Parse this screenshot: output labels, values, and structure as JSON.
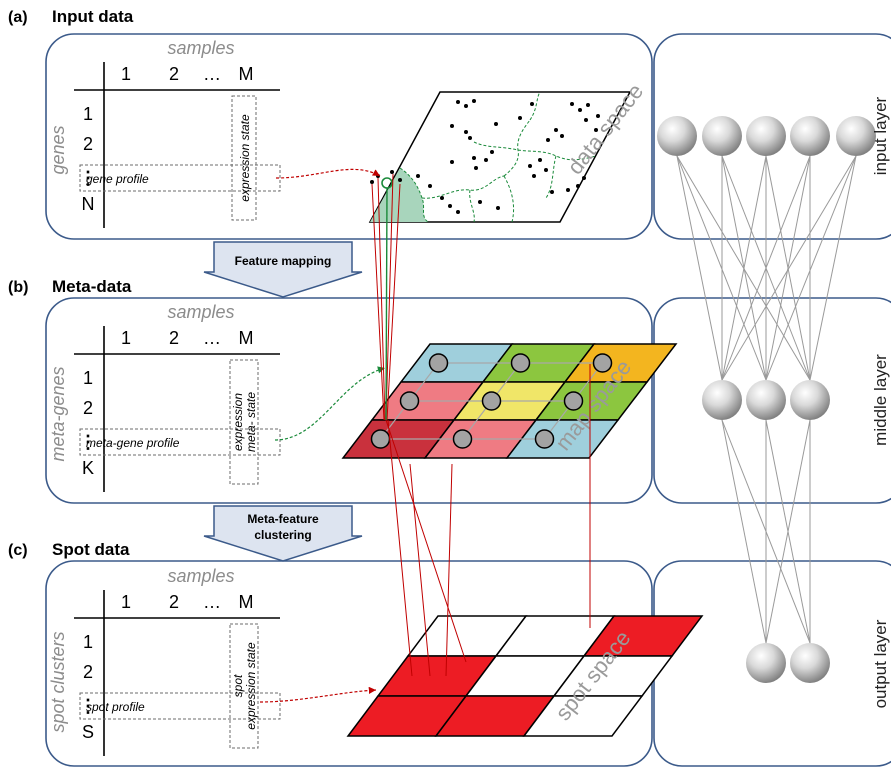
{
  "sections": [
    {
      "letter": "(a)",
      "title": "Input data"
    },
    {
      "letter": "(b)",
      "title": "Meta-data"
    },
    {
      "letter": "(c)",
      "title": "Spot data"
    }
  ],
  "tables": [
    {
      "samples_label": "samples",
      "row_axis_label": "genes",
      "profile_label": "gene profile",
      "state_label": [
        "expression state"
      ],
      "last_row": "N"
    },
    {
      "samples_label": "samples",
      "row_axis_label": "meta-genes",
      "profile_label": "meta-gene profile",
      "state_label": [
        "expression",
        "metа- state"
      ],
      "last_row": "K"
    },
    {
      "samples_label": "samples",
      "row_axis_label": "spot clusters",
      "profile_label": "spot profile",
      "state_label": [
        "spot",
        "expression state"
      ],
      "last_row": "S"
    }
  ],
  "column_headers": [
    "1",
    "2",
    "…",
    "M"
  ],
  "row_headers": [
    "1",
    "2",
    "⋮"
  ],
  "space_labels": [
    "data space",
    "map space",
    "spot space"
  ],
  "layer_labels": [
    "input layer",
    "middle layer",
    "output layer"
  ],
  "arrows": [
    {
      "label_lines": [
        "Feature mapping"
      ]
    },
    {
      "label_lines": [
        "Meta-feature",
        "clustering"
      ]
    }
  ],
  "colors": {
    "panel_border": "#3b5a8a",
    "arrow_fill": "#dde4f0",
    "map_blue": "#9fcfdc",
    "map_green": "#8cc63f",
    "map_yellow": "#f0e668",
    "map_orange": "#f3b51f",
    "map_pink": "#ef7b83",
    "map_darkred": "#c9313d",
    "spot_red": "#ed1c24",
    "data_green": "#a8d5bc"
  }
}
